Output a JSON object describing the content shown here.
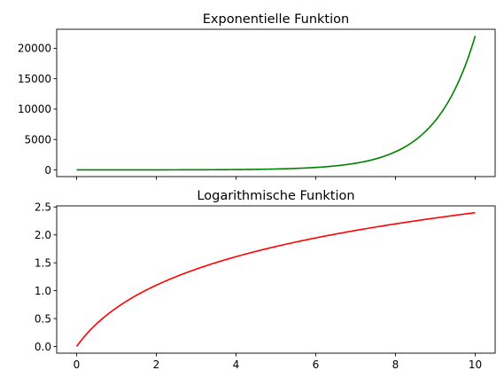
{
  "chart_data": [
    {
      "type": "line",
      "title": "Exponentielle Funktion",
      "function": "exp(x)",
      "xlim": [
        -0.5,
        10.5
      ],
      "ylim": [
        -1101,
        23127
      ],
      "x_ticks": [
        0,
        2,
        4,
        6,
        8,
        10
      ],
      "x_tick_labels_visible": false,
      "y_ticks": [
        0,
        5000,
        10000,
        15000,
        20000
      ],
      "y_tick_labels": [
        "0",
        "5000",
        "10000",
        "15000",
        "20000"
      ],
      "series": [
        {
          "color": "#008000",
          "x": [
            0,
            1,
            2,
            3,
            4,
            5,
            6,
            7,
            8,
            9,
            10
          ],
          "y": [
            1,
            2.72,
            7.39,
            20.1,
            54.6,
            148.4,
            403.4,
            1096.6,
            2981.0,
            8103.1,
            22026.5
          ]
        }
      ]
    },
    {
      "type": "line",
      "title": "Logarithmische Funktion",
      "function": "log(1 + x)",
      "xlim": [
        -0.5,
        10.5
      ],
      "ylim": [
        -0.12,
        2.52
      ],
      "x_ticks": [
        0,
        2,
        4,
        6,
        8,
        10
      ],
      "x_tick_labels": [
        "0",
        "2",
        "4",
        "6",
        "8",
        "10"
      ],
      "y_ticks": [
        0.0,
        0.5,
        1.0,
        1.5,
        2.0,
        2.5
      ],
      "y_tick_labels": [
        "0.0",
        "0.5",
        "1.0",
        "1.5",
        "2.0",
        "2.5"
      ],
      "series": [
        {
          "color": "#ff0000",
          "x": [
            0,
            1,
            2,
            3,
            4,
            5,
            6,
            7,
            8,
            9,
            10
          ],
          "y": [
            0,
            0.693,
            1.099,
            1.386,
            1.609,
            1.792,
            1.946,
            2.079,
            2.197,
            2.303,
            2.398
          ]
        }
      ]
    }
  ]
}
